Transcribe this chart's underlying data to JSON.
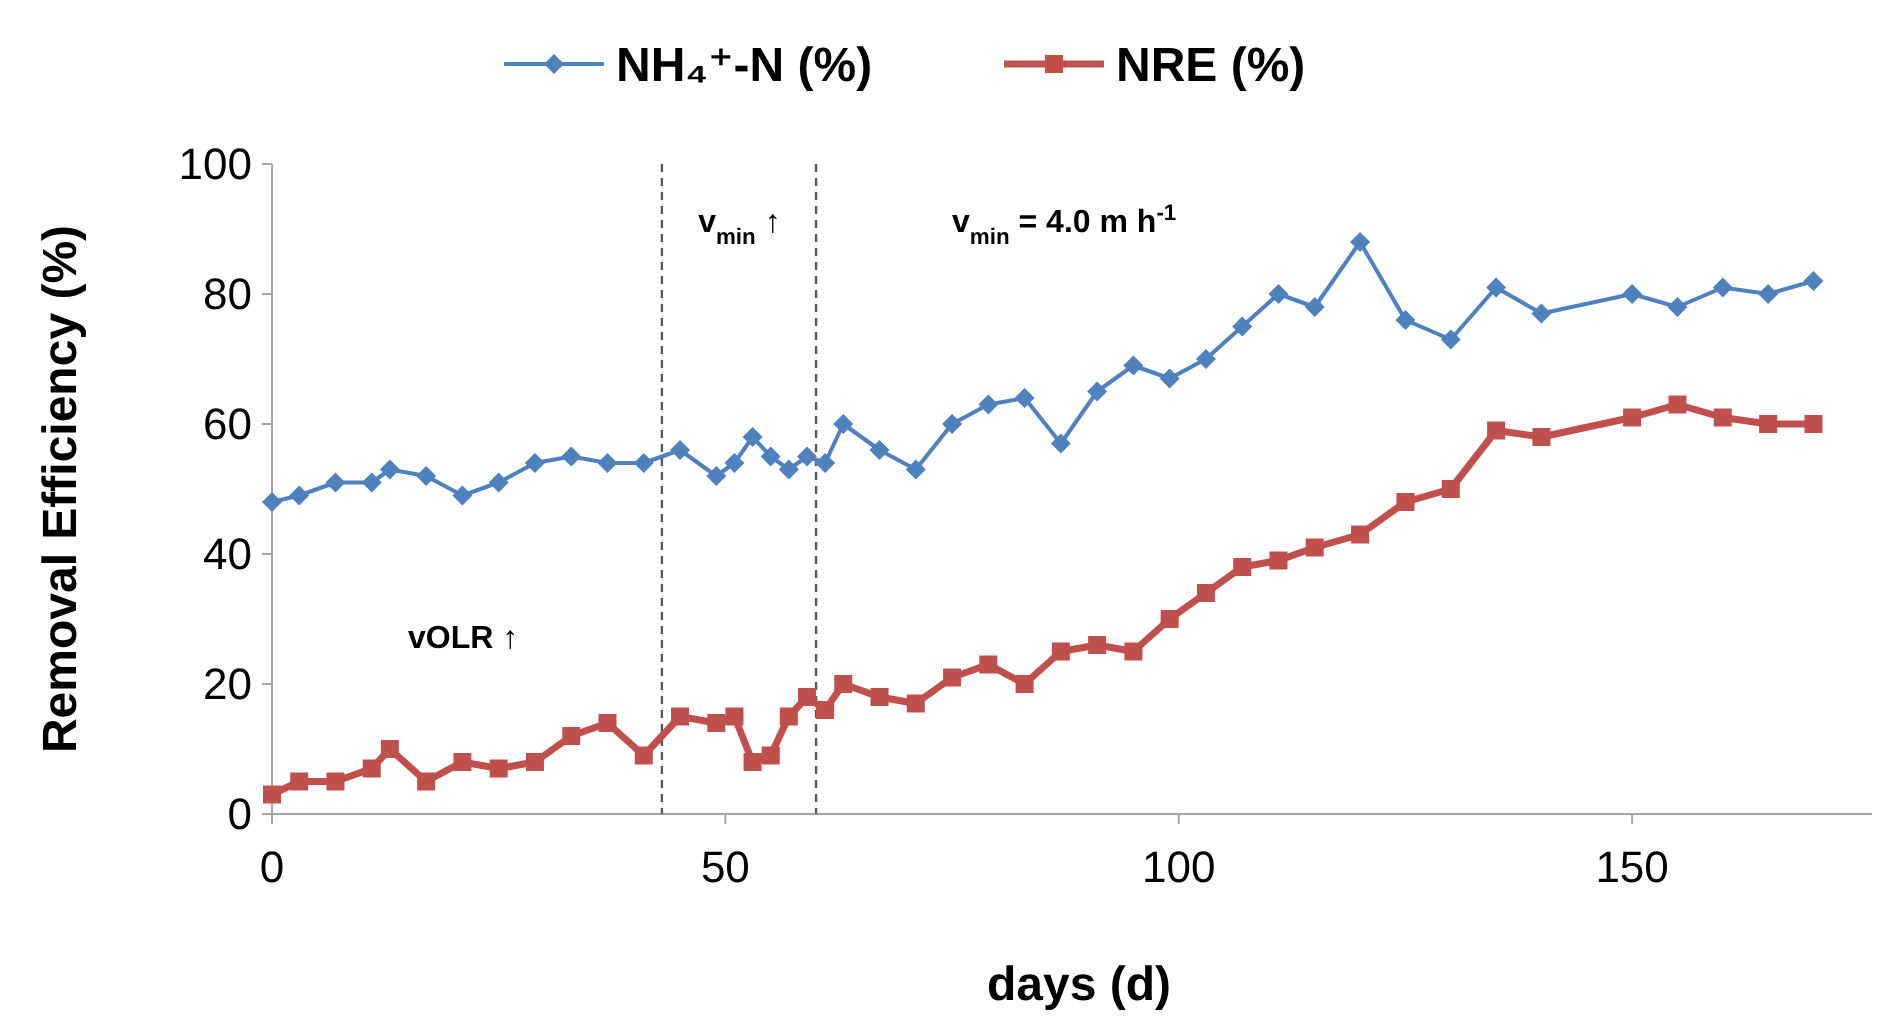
{
  "chart_data": {
    "type": "line",
    "xlabel": "days (d)",
    "ylabel": "Removal Efficiency (%)",
    "xlim": [
      0,
      178
    ],
    "xticks": [
      0,
      50,
      100,
      150
    ],
    "ylim": [
      0,
      100
    ],
    "yticks": [
      0,
      20,
      40,
      60,
      80,
      100
    ],
    "grid": false,
    "legend": "top",
    "series": [
      {
        "name": "NH₄⁺-N (%)",
        "color": "#4f81bd",
        "marker": "diamond",
        "x": [
          0,
          3,
          7,
          11,
          13,
          17,
          21,
          25,
          29,
          33,
          37,
          41,
          45,
          49,
          51,
          53,
          55,
          57,
          59,
          61,
          63,
          67,
          71,
          75,
          79,
          83,
          87,
          91,
          95,
          99,
          103,
          107,
          111,
          115,
          120,
          125,
          130,
          135,
          140,
          150,
          155,
          160,
          165,
          170
        ],
        "values": [
          48,
          49,
          51,
          51,
          53,
          52,
          49,
          51,
          54,
          55,
          54,
          54,
          56,
          52,
          54,
          58,
          55,
          53,
          55,
          54,
          60,
          56,
          53,
          60,
          63,
          64,
          57,
          65,
          69,
          67,
          70,
          75,
          80,
          78,
          88,
          76,
          73,
          81,
          77,
          80,
          78,
          81,
          80,
          82
        ]
      },
      {
        "name": "NRE (%)",
        "color": "#c0504d",
        "marker": "square",
        "x": [
          0,
          3,
          7,
          11,
          13,
          17,
          21,
          25,
          29,
          33,
          37,
          41,
          45,
          49,
          51,
          53,
          55,
          57,
          59,
          61,
          63,
          67,
          71,
          75,
          79,
          83,
          87,
          91,
          95,
          99,
          103,
          107,
          111,
          115,
          120,
          125,
          130,
          135,
          140,
          150,
          155,
          160,
          165,
          170
        ],
        "values": [
          3,
          5,
          5,
          7,
          10,
          5,
          8,
          7,
          8,
          12,
          14,
          9,
          15,
          14,
          15,
          8,
          9,
          15,
          18,
          16,
          20,
          18,
          17,
          21,
          23,
          20,
          25,
          26,
          25,
          30,
          34,
          38,
          39,
          41,
          43,
          48,
          50,
          59,
          58,
          61,
          63,
          61,
          60,
          60
        ]
      }
    ],
    "ref_lines": [
      {
        "axis": "x",
        "value": 43,
        "color": "#595959",
        "line_style": "dashed"
      },
      {
        "axis": "x",
        "value": 60,
        "color": "#595959",
        "line_style": "dashed"
      }
    ],
    "annotations": [
      "v$_{min}$ ↑",
      "v$_{min}$ = 4.0 m h$^{-1}$",
      "vOLR ↑"
    ]
  }
}
